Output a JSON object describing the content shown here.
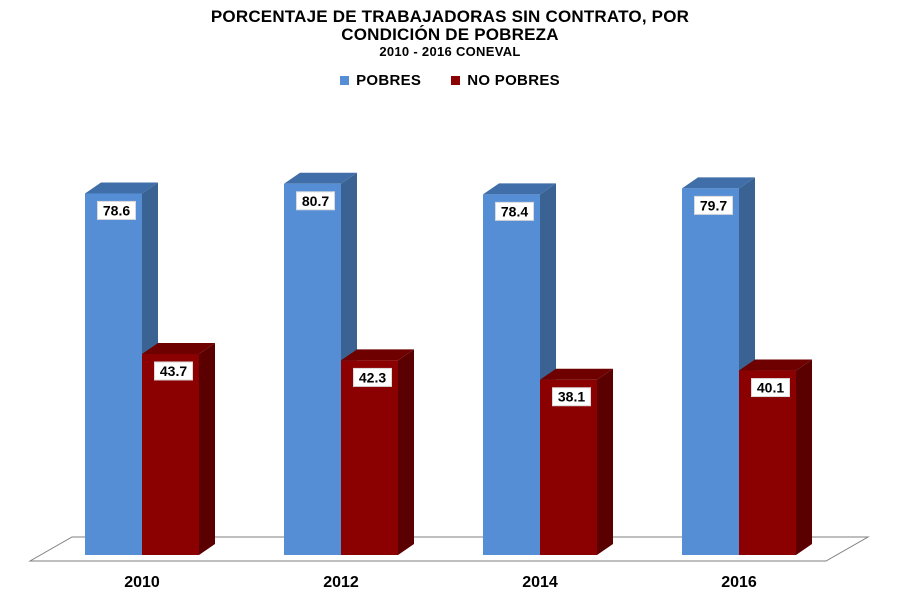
{
  "chart_data": {
    "type": "bar",
    "title": "PORCENTAJE DE TRABAJADORAS SIN CONTRATO,  POR CONDICIÓN DE POBREZA",
    "title_lines": [
      "PORCENTAJE DE TRABAJADORAS SIN CONTRATO,  POR",
      "CONDICIÓN DE POBREZA"
    ],
    "subtitle": "2010 - 2016 CONEVAL",
    "xlabel": "",
    "ylabel": "",
    "ylim": [
      0,
      100
    ],
    "grid": false,
    "legend_position": "top",
    "three_d": true,
    "categories": [
      "2010",
      "2012",
      "2014",
      "2016"
    ],
    "series": [
      {
        "name": "POBRES",
        "values": [
          78.6,
          80.7,
          78.4,
          79.7
        ],
        "color": "#558ed5",
        "side_color": "#3a6394",
        "top_color": "#3f6ea8"
      },
      {
        "name": "NO POBRES",
        "values": [
          43.7,
          42.3,
          38.1,
          40.1
        ],
        "color": "#8b0000",
        "side_color": "#5a0000",
        "top_color": "#6e0000"
      }
    ]
  }
}
